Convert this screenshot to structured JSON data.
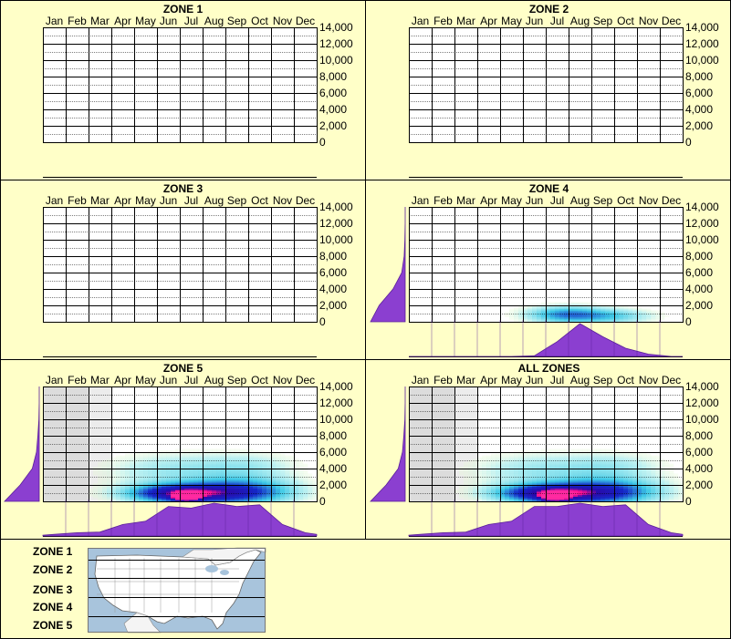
{
  "colors": {
    "background": "#ffffc8",
    "border": "#000000",
    "marginal_fill": "#8b3fd0",
    "cold_shade": "#dcdcdc",
    "heat_low": "#b8f0f0",
    "heat_mid": "#3cc8e6",
    "heat_high": "#1020c0",
    "heat_peak": "#ff1090",
    "map_water": "#a8c4dc",
    "map_land": "#ffffff"
  },
  "months": [
    "Jan",
    "Feb",
    "Mar",
    "Apr",
    "May",
    "Jun",
    "Jul",
    "Aug",
    "Sep",
    "Oct",
    "Nov",
    "Dec"
  ],
  "y_ticks": [
    "0",
    "2,000",
    "4,000",
    "6,000",
    "8,000",
    "10,000",
    "12,000",
    "14,000"
  ],
  "chart_data": [
    {
      "type": "heatmap",
      "title": "ZONE 1",
      "x_categories": [
        "Jan",
        "Feb",
        "Mar",
        "Apr",
        "May",
        "Jun",
        "Jul",
        "Aug",
        "Sep",
        "Oct",
        "Nov",
        "Dec"
      ],
      "y_ticks": [
        0,
        2000,
        4000,
        6000,
        8000,
        10000,
        12000,
        14000
      ],
      "ylim": [
        0,
        14000
      ],
      "has_data": false,
      "cold_months": 0,
      "blobs": [],
      "month_marginal": [],
      "elevation_marginal": []
    },
    {
      "type": "heatmap",
      "title": "ZONE 2",
      "x_categories": [
        "Jan",
        "Feb",
        "Mar",
        "Apr",
        "May",
        "Jun",
        "Jul",
        "Aug",
        "Sep",
        "Oct",
        "Nov",
        "Dec"
      ],
      "y_ticks": [
        0,
        2000,
        4000,
        6000,
        8000,
        10000,
        12000,
        14000
      ],
      "ylim": [
        0,
        14000
      ],
      "has_data": false,
      "cold_months": 0,
      "blobs": [],
      "month_marginal": [],
      "elevation_marginal": []
    },
    {
      "type": "heatmap",
      "title": "ZONE 3",
      "x_categories": [
        "Jan",
        "Feb",
        "Mar",
        "Apr",
        "May",
        "Jun",
        "Jul",
        "Aug",
        "Sep",
        "Oct",
        "Nov",
        "Dec"
      ],
      "y_ticks": [
        0,
        2000,
        4000,
        6000,
        8000,
        10000,
        12000,
        14000
      ],
      "ylim": [
        0,
        14000
      ],
      "has_data": false,
      "cold_months": 0,
      "blobs": [],
      "month_marginal": [],
      "elevation_marginal": []
    },
    {
      "type": "heatmap",
      "title": "ZONE 4",
      "x_categories": [
        "Jan",
        "Feb",
        "Mar",
        "Apr",
        "May",
        "Jun",
        "Jul",
        "Aug",
        "Sep",
        "Oct",
        "Nov",
        "Dec"
      ],
      "y_ticks": [
        0,
        2000,
        4000,
        6000,
        8000,
        10000,
        12000,
        14000
      ],
      "ylim": [
        0,
        14000
      ],
      "has_data": true,
      "cold_months": 0,
      "blobs": [
        {
          "month": 7.4,
          "elev": 900,
          "level": 0.45,
          "spread_month": 1.2,
          "spread_elev": 700
        },
        {
          "month": 9.5,
          "elev": 700,
          "level": 0.25,
          "spread_month": 1.2,
          "spread_elev": 600
        }
      ],
      "month_marginal": [
        0,
        0,
        0,
        0,
        0,
        0.02,
        0.45,
        1.0,
        0.6,
        0.25,
        0.07,
        0.0
      ],
      "elevation_marginal": [
        1.0,
        0.75,
        0.35,
        0.1,
        0.03,
        0.01,
        0,
        0
      ]
    },
    {
      "type": "heatmap",
      "title": "ZONE 5",
      "x_categories": [
        "Jan",
        "Feb",
        "Mar",
        "Apr",
        "May",
        "Jun",
        "Jul",
        "Aug",
        "Sep",
        "Oct",
        "Nov",
        "Dec"
      ],
      "y_ticks": [
        0,
        2000,
        4000,
        6000,
        8000,
        10000,
        12000,
        14000
      ],
      "ylim": [
        0,
        14000
      ],
      "has_data": true,
      "cold_months": 3,
      "blobs": [
        {
          "month": 6.8,
          "elev": 600,
          "level": 1.0,
          "spread_month": 0.35,
          "spread_elev": 350
        },
        {
          "month": 6.5,
          "elev": 1000,
          "level": 0.8,
          "spread_month": 1.6,
          "spread_elev": 800
        },
        {
          "month": 9.3,
          "elev": 1200,
          "level": 0.55,
          "spread_month": 1.6,
          "spread_elev": 1100
        },
        {
          "month": 6.2,
          "elev": 3800,
          "level": 0.18,
          "spread_month": 2.0,
          "spread_elev": 1400
        },
        {
          "month": 9.5,
          "elev": 4200,
          "level": 0.15,
          "spread_month": 1.5,
          "spread_elev": 1200
        }
      ],
      "month_marginal": [
        0.05,
        0.1,
        0.12,
        0.35,
        0.45,
        0.9,
        0.85,
        1.0,
        0.9,
        0.95,
        0.35,
        0.1
      ],
      "elevation_marginal": [
        1.0,
        0.55,
        0.2,
        0.08,
        0.04,
        0.01,
        0,
        0
      ]
    },
    {
      "type": "heatmap",
      "title": "ALL ZONES",
      "x_categories": [
        "Jan",
        "Feb",
        "Mar",
        "Apr",
        "May",
        "Jun",
        "Jul",
        "Aug",
        "Sep",
        "Oct",
        "Nov",
        "Dec"
      ],
      "y_ticks": [
        0,
        2000,
        4000,
        6000,
        8000,
        10000,
        12000,
        14000
      ],
      "ylim": [
        0,
        14000
      ],
      "has_data": true,
      "cold_months": 3,
      "blobs": [
        {
          "month": 6.9,
          "elev": 600,
          "level": 1.0,
          "spread_month": 0.35,
          "spread_elev": 350
        },
        {
          "month": 6.6,
          "elev": 1000,
          "level": 0.8,
          "spread_month": 1.6,
          "spread_elev": 800
        },
        {
          "month": 9.3,
          "elev": 1200,
          "level": 0.55,
          "spread_month": 1.6,
          "spread_elev": 1100
        },
        {
          "month": 6.2,
          "elev": 3800,
          "level": 0.18,
          "spread_month": 2.0,
          "spread_elev": 1400
        },
        {
          "month": 9.5,
          "elev": 4200,
          "level": 0.15,
          "spread_month": 1.5,
          "spread_elev": 1200
        }
      ],
      "month_marginal": [
        0.05,
        0.1,
        0.12,
        0.35,
        0.45,
        0.9,
        0.9,
        1.0,
        0.9,
        0.95,
        0.35,
        0.1
      ],
      "elevation_marginal": [
        1.0,
        0.55,
        0.2,
        0.08,
        0.04,
        0.01,
        0,
        0
      ]
    }
  ],
  "legend": {
    "zones": [
      "ZONE 1",
      "ZONE 2",
      "ZONE 3",
      "ZONE 4",
      "ZONE 5"
    ],
    "map_icon": "us-map-icon"
  }
}
